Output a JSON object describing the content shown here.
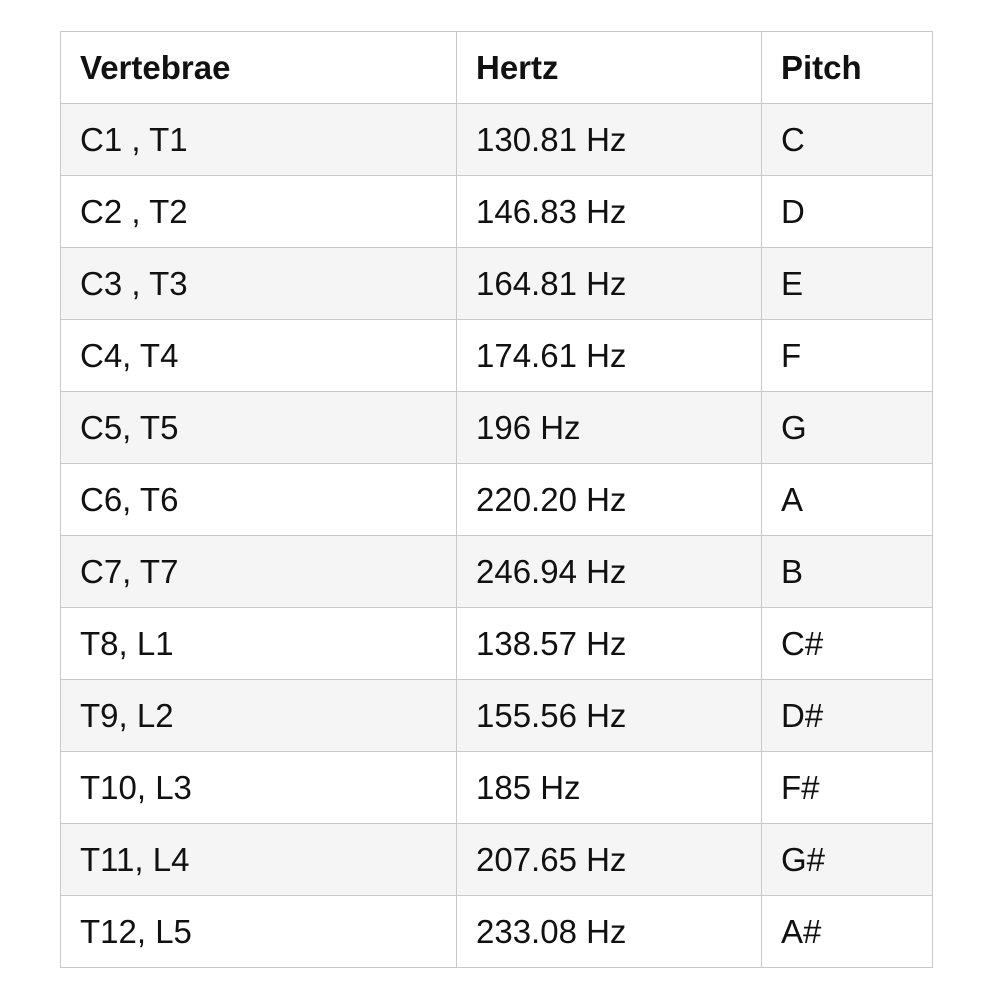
{
  "table": {
    "columns": [
      {
        "label": "Vertebrae"
      },
      {
        "label": "Hertz"
      },
      {
        "label": "Pitch"
      }
    ],
    "rows": [
      {
        "vertebrae": "C1 , T1",
        "hertz": "130.81 Hz",
        "pitch": "C"
      },
      {
        "vertebrae": "C2 , T2",
        "hertz": "146.83 Hz",
        "pitch": "D"
      },
      {
        "vertebrae": "C3 , T3",
        "hertz": "164.81 Hz",
        "pitch": "E"
      },
      {
        "vertebrae": "C4, T4",
        "hertz": "174.61 Hz",
        "pitch": "F"
      },
      {
        "vertebrae": "C5, T5",
        "hertz": "196 Hz",
        "pitch": "G"
      },
      {
        "vertebrae": "C6, T6",
        "hertz": "220.20 Hz",
        "pitch": "A"
      },
      {
        "vertebrae": "C7, T7",
        "hertz": "246.94 Hz",
        "pitch": "B"
      },
      {
        "vertebrae": "T8, L1",
        "hertz": "138.57 Hz",
        "pitch": "C#"
      },
      {
        "vertebrae": "T9, L2",
        "hertz": "155.56 Hz",
        "pitch": "D#"
      },
      {
        "vertebrae": "T10, L3",
        "hertz": "185 Hz",
        "pitch": "F#"
      },
      {
        "vertebrae": "T11, L4",
        "hertz": "207.65 Hz",
        "pitch": "G#"
      },
      {
        "vertebrae": "T12, L5",
        "hertz": "233.08 Hz",
        "pitch": "A#"
      }
    ]
  },
  "colors": {
    "row_stripe": "#f5f5f5",
    "border": "#c9c9c9",
    "text": "#111111",
    "background": "#ffffff"
  },
  "chart_data": {
    "type": "table",
    "title": "",
    "columns": [
      "Vertebrae",
      "Hertz",
      "Pitch"
    ],
    "rows": [
      [
        "C1 , T1",
        "130.81 Hz",
        "C"
      ],
      [
        "C2 , T2",
        "146.83 Hz",
        "D"
      ],
      [
        "C3 , T3",
        "164.81 Hz",
        "E"
      ],
      [
        "C4, T4",
        "174.61 Hz",
        "F"
      ],
      [
        "C5, T5",
        "196 Hz",
        "G"
      ],
      [
        "C6, T6",
        "220.20 Hz",
        "A"
      ],
      [
        "C7, T7",
        "246.94 Hz",
        "B"
      ],
      [
        "T8, L1",
        "138.57 Hz",
        "C#"
      ],
      [
        "T9, L2",
        "155.56 Hz",
        "D#"
      ],
      [
        "T10, L3",
        "185 Hz",
        "F#"
      ],
      [
        "T11, L4",
        "207.65 Hz",
        "G#"
      ],
      [
        "T12, L5",
        "233.08 Hz",
        "A#"
      ]
    ]
  }
}
